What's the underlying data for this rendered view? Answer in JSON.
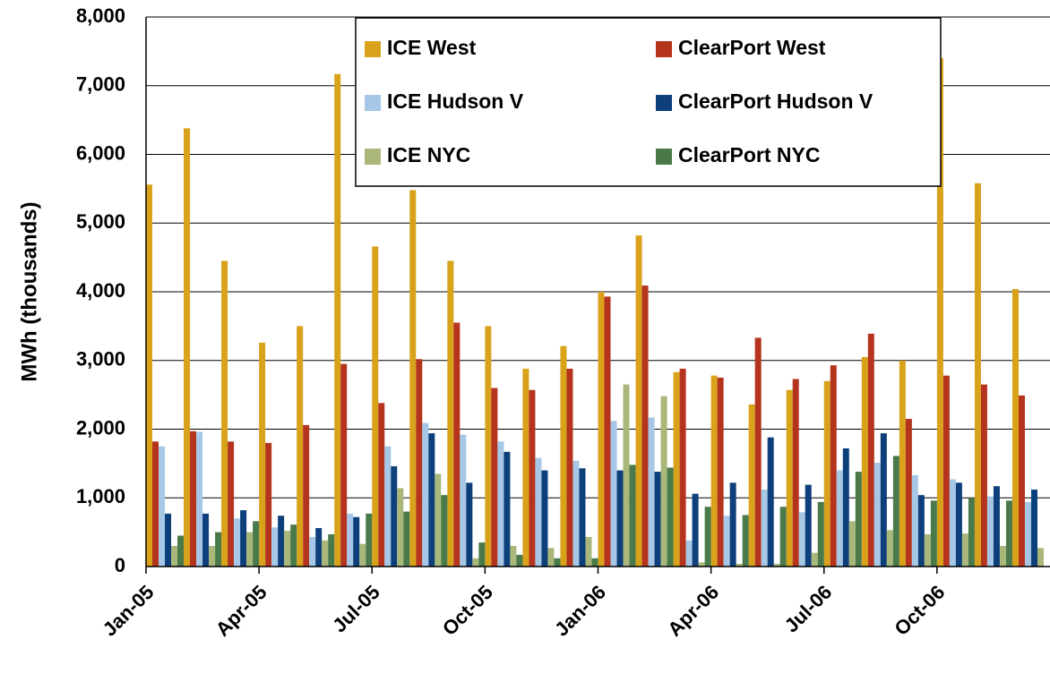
{
  "chart_data": {
    "type": "bar",
    "y_label": "MWh (thousands)",
    "categories": [
      "Jan-05",
      null,
      null,
      "Apr-05",
      null,
      null,
      "Jul-05",
      null,
      null,
      "Oct-05",
      null,
      null,
      "Jan-06",
      null,
      null,
      "Apr-06",
      null,
      null,
      "Jul-06",
      null,
      null,
      "Oct-06",
      null,
      null
    ],
    "series": [
      {
        "name": "ICE West",
        "color": "#d9a21b",
        "values": [
          5560,
          6380,
          4450,
          3260,
          3500,
          7170,
          4660,
          5480,
          4450,
          3500,
          2880,
          3210,
          4000,
          4820,
          2830,
          2780,
          2360,
          2570,
          2700,
          3050,
          3000,
          7400,
          5580,
          4040
        ]
      },
      {
        "name": "ClearPort West",
        "color": "#b5341e",
        "values": [
          1820,
          1970,
          1820,
          1800,
          2060,
          2950,
          2380,
          3020,
          3550,
          2600,
          2570,
          2880,
          3930,
          4090,
          2880,
          2750,
          3330,
          2730,
          2930,
          3390,
          2150,
          2780,
          2650,
          2490
        ]
      },
      {
        "name": "ICE Hudson V",
        "color": "#a6c8e6",
        "values": [
          1750,
          1960,
          700,
          570,
          430,
          770,
          1750,
          2090,
          1920,
          1820,
          1580,
          1540,
          2120,
          2170,
          380,
          740,
          1120,
          790,
          1400,
          1510,
          1330,
          1270,
          1020,
          940
        ]
      },
      {
        "name": "ClearPort Hudson V",
        "color": "#0d3f7a",
        "values": [
          770,
          770,
          820,
          740,
          560,
          720,
          1460,
          1940,
          1220,
          1670,
          1400,
          1430,
          1400,
          1380,
          1060,
          1220,
          1880,
          1190,
          1720,
          1940,
          1040,
          1220,
          1170,
          1120
        ]
      },
      {
        "name": "ICE NYC",
        "color": "#a9b77a",
        "values": [
          300,
          300,
          500,
          520,
          380,
          330,
          1140,
          1350,
          120,
          300,
          270,
          430,
          2650,
          2480,
          60,
          40,
          40,
          200,
          660,
          530,
          470,
          480,
          300,
          270
        ]
      },
      {
        "name": "ClearPort NYC",
        "color": "#4a7a4a",
        "values": [
          450,
          500,
          660,
          610,
          470,
          770,
          800,
          1040,
          350,
          170,
          120,
          120,
          1480,
          1440,
          870,
          750,
          870,
          940,
          1380,
          1610,
          960,
          1000,
          960,
          null
        ]
      }
    ],
    "ylim": [
      0,
      8000
    ],
    "yticks": [
      0,
      {
        "value": 1000,
        "label": "1,000"
      },
      {
        "value": 2000,
        "label": "2,000"
      },
      {
        "value": 3000,
        "label": "3,000"
      },
      {
        "value": 4000,
        "label": "4,000"
      },
      {
        "value": 5000,
        "label": "5,000"
      },
      {
        "value": 6000,
        "label": "6,000"
      },
      {
        "value": 7000,
        "label": "7,000"
      },
      {
        "value": 8000,
        "label": "8,000"
      }
    ],
    "grid": true
  }
}
